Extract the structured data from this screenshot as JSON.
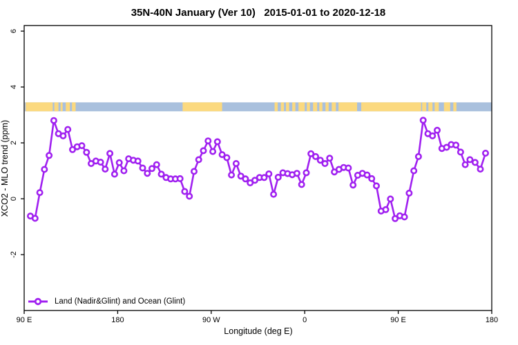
{
  "title": "35N-40N January (Ver 10)   2015-01-01 to 2020-12-18",
  "colors": {
    "series_purple": "#A020F0",
    "ocean_blue": "#A9C0DD",
    "land_tan": "#FBD97F",
    "axis_black": "#000000",
    "background": "#FFFFFF"
  },
  "chart_data": {
    "type": "line",
    "title": "35N-40N January (Ver 10)   2015-01-01 to 2020-12-18",
    "xlabel": "Longitude (deg E)",
    "ylabel": "XCO2 - MLO trend (ppm)",
    "xlim": [
      90,
      540
    ],
    "ylim": [
      -4,
      6.2
    ],
    "grid": false,
    "x_ticks": [
      {
        "pos": 90,
        "label": "90 E"
      },
      {
        "pos": 180,
        "label": "180"
      },
      {
        "pos": 270,
        "label": "90 W"
      },
      {
        "pos": 360,
        "label": "0"
      },
      {
        "pos": 450,
        "label": "90 E"
      },
      {
        "pos": 540,
        "label": "180"
      }
    ],
    "y_ticks": [
      {
        "pos": -2,
        "label": "-2"
      },
      {
        "pos": 0,
        "label": "0"
      },
      {
        "pos": 2,
        "label": "2"
      },
      {
        "pos": 4,
        "label": "4"
      },
      {
        "pos": 6,
        "label": "6"
      }
    ],
    "legend": {
      "position": "bottom-left",
      "entries": [
        {
          "label": "Land (Nadir&Glint) and Ocean (Glint)",
          "color": "#A020F0",
          "marker": "open-circle-line"
        }
      ]
    },
    "map_strip": {
      "description": "land/ocean strip for 35N-40N latitude band drawn across plot at ~3.3 ppm",
      "value_top": 3.45,
      "value_bottom": 3.13,
      "ocean_color": "#A9C0DD",
      "land_color": "#FBD97F",
      "ocean_extent": [
        90.7,
        540
      ],
      "land_segments": [
        [
          91.5,
          117.5
        ],
        [
          119,
          123
        ],
        [
          125,
          127
        ],
        [
          130,
          134
        ],
        [
          136,
          139.5
        ],
        [
          242.5,
          280.5
        ],
        [
          331,
          334
        ],
        [
          337,
          340
        ],
        [
          342,
          345
        ],
        [
          348,
          351
        ],
        [
          354,
          360
        ],
        [
          362,
          365
        ],
        [
          368,
          372
        ],
        [
          374,
          377
        ],
        [
          380,
          383
        ],
        [
          386,
          390
        ],
        [
          392.5,
          410.4
        ],
        [
          414.4,
          472
        ],
        [
          473,
          477
        ],
        [
          479,
          483
        ],
        [
          485,
          489
        ],
        [
          494,
          500
        ],
        [
          503,
          506
        ]
      ]
    },
    "series": [
      {
        "name": "Land (Nadir&Glint) and Ocean (Glint)",
        "color": "#A020F0",
        "marker": "open-circle",
        "points": [
          [
            96,
            -0.62
          ],
          [
            100.5,
            -0.7
          ],
          [
            105,
            0.22
          ],
          [
            109.5,
            1.05
          ],
          [
            114,
            1.55
          ],
          [
            118.5,
            2.8
          ],
          [
            123,
            2.33
          ],
          [
            127.5,
            2.25
          ],
          [
            132,
            2.48
          ],
          [
            136.5,
            1.76
          ],
          [
            141,
            1.86
          ],
          [
            145.5,
            1.9
          ],
          [
            150,
            1.66
          ],
          [
            154.5,
            1.26
          ],
          [
            159,
            1.35
          ],
          [
            163.5,
            1.31
          ],
          [
            168,
            1.06
          ],
          [
            172.5,
            1.62
          ],
          [
            177,
            0.88
          ],
          [
            181.5,
            1.29
          ],
          [
            186,
            1.0
          ],
          [
            190.5,
            1.43
          ],
          [
            195,
            1.38
          ],
          [
            199.5,
            1.35
          ],
          [
            204,
            1.1
          ],
          [
            208.5,
            0.91
          ],
          [
            213,
            1.08
          ],
          [
            217.5,
            1.22
          ],
          [
            222,
            0.88
          ],
          [
            226.5,
            0.76
          ],
          [
            231,
            0.71
          ],
          [
            235.5,
            0.71
          ],
          [
            240,
            0.72
          ],
          [
            244.5,
            0.26
          ],
          [
            249,
            0.09
          ],
          [
            253.5,
            0.98
          ],
          [
            258,
            1.4
          ],
          [
            262.5,
            1.72
          ],
          [
            267,
            2.07
          ],
          [
            271.5,
            1.69
          ],
          [
            276,
            2.04
          ],
          [
            280.5,
            1.58
          ],
          [
            285,
            1.47
          ],
          [
            289.5,
            0.85
          ],
          [
            294,
            1.26
          ],
          [
            298.5,
            0.81
          ],
          [
            303,
            0.71
          ],
          [
            307.5,
            0.57
          ],
          [
            312,
            0.66
          ],
          [
            316.5,
            0.76
          ],
          [
            321,
            0.76
          ],
          [
            325.5,
            0.89
          ],
          [
            330,
            0.16
          ],
          [
            334.5,
            0.77
          ],
          [
            339,
            0.93
          ],
          [
            343.5,
            0.9
          ],
          [
            348,
            0.86
          ],
          [
            352.5,
            0.91
          ],
          [
            357,
            0.51
          ],
          [
            361.5,
            0.93
          ],
          [
            366,
            1.61
          ],
          [
            370.5,
            1.51
          ],
          [
            375,
            1.38
          ],
          [
            379.5,
            1.26
          ],
          [
            384,
            1.45
          ],
          [
            388.5,
            0.96
          ],
          [
            393,
            1.05
          ],
          [
            397.5,
            1.12
          ],
          [
            402,
            1.1
          ],
          [
            406.5,
            0.49
          ],
          [
            411,
            0.84
          ],
          [
            415.5,
            0.91
          ],
          [
            420,
            0.85
          ],
          [
            424.5,
            0.72
          ],
          [
            429,
            0.46
          ],
          [
            433.5,
            -0.44
          ],
          [
            438,
            -0.39
          ],
          [
            442.5,
            -0.01
          ],
          [
            447,
            -0.71
          ],
          [
            451.5,
            -0.61
          ],
          [
            456,
            -0.65
          ],
          [
            460.5,
            0.2
          ],
          [
            465,
            1.0
          ],
          [
            469.5,
            1.51
          ],
          [
            474,
            2.81
          ],
          [
            478.5,
            2.33
          ],
          [
            483,
            2.25
          ],
          [
            487.5,
            2.45
          ],
          [
            492,
            1.8
          ],
          [
            496.5,
            1.84
          ],
          [
            501,
            1.94
          ],
          [
            505.5,
            1.92
          ],
          [
            510,
            1.67
          ],
          [
            514.5,
            1.22
          ],
          [
            519,
            1.4
          ],
          [
            524,
            1.3
          ],
          [
            529,
            1.06
          ],
          [
            534,
            1.63
          ]
        ]
      }
    ]
  }
}
